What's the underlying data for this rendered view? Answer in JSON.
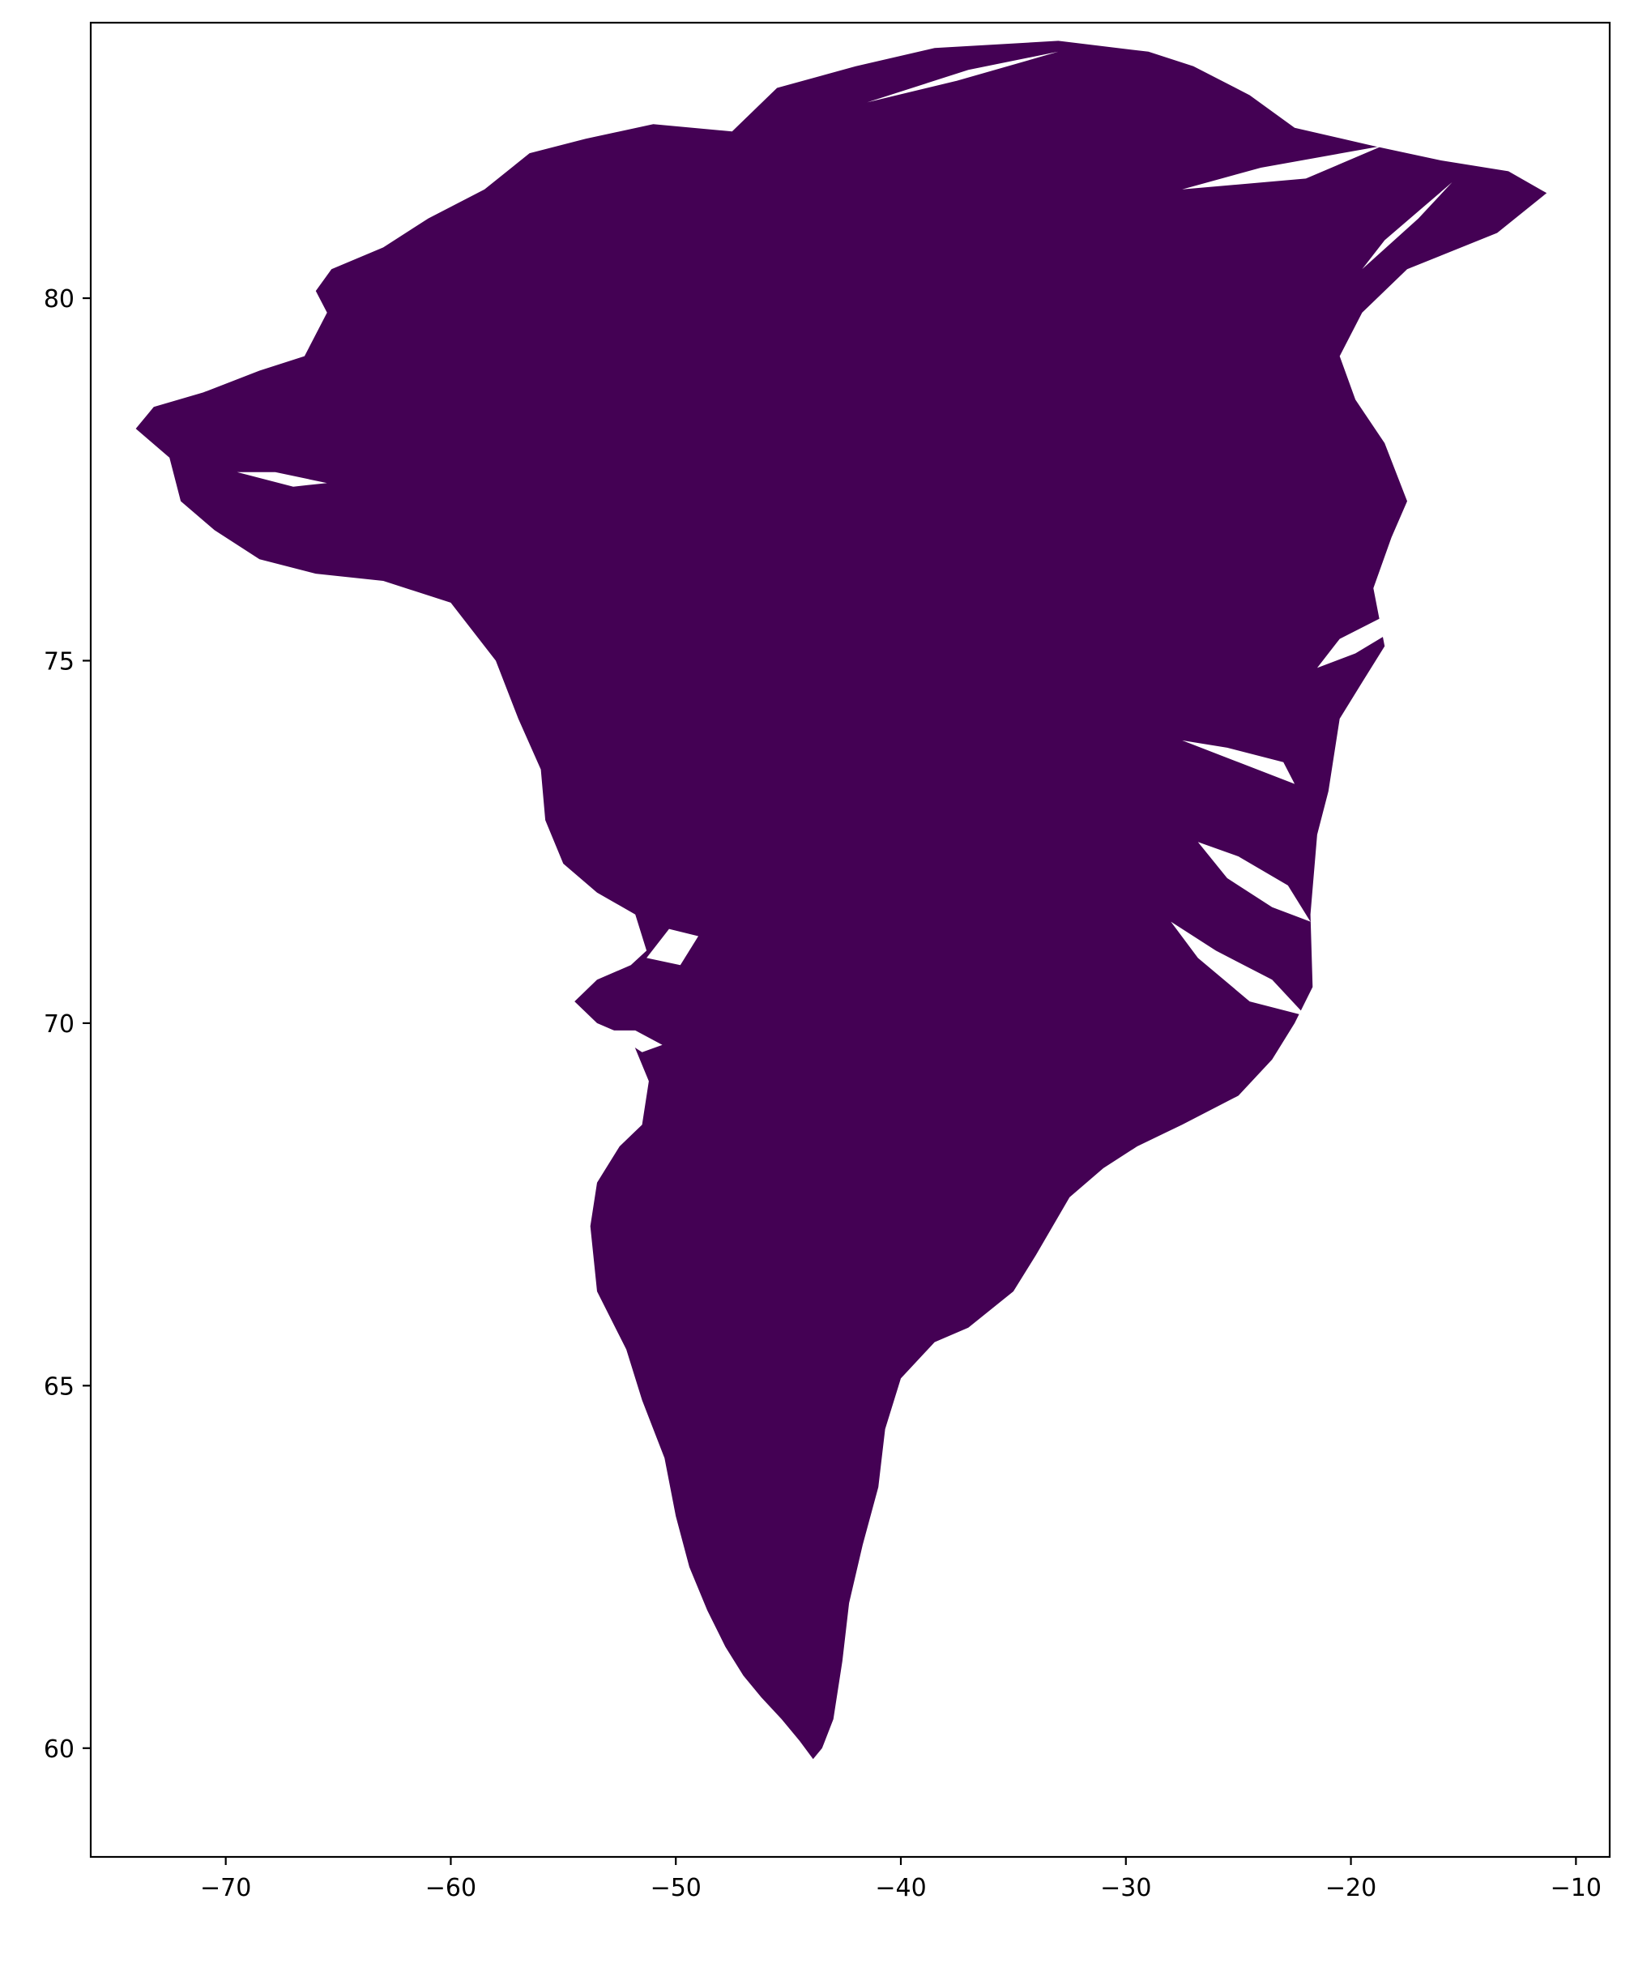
{
  "chart_data": {
    "type": "map",
    "title": "",
    "xlabel": "",
    "ylabel": "",
    "xlim": [
      -76,
      -8.5
    ],
    "ylim": [
      58.5,
      83.8
    ],
    "x_ticks": [
      -70,
      -60,
      -50,
      -40,
      -30,
      -20,
      -10
    ],
    "x_tick_labels": [
      "−70",
      "−60",
      "−50",
      "−40",
      "−30",
      "−20",
      "−10"
    ],
    "y_ticks": [
      60,
      65,
      70,
      75,
      80
    ],
    "y_tick_labels": [
      "60",
      "65",
      "70",
      "75",
      "80"
    ],
    "grid": false,
    "legend": "none",
    "fill_color": "#440154",
    "region": "Greenland",
    "outline": [
      [
        -74.0,
        78.2
      ],
      [
        -73.2,
        78.5
      ],
      [
        -71.0,
        78.7
      ],
      [
        -68.5,
        79.0
      ],
      [
        -66.5,
        79.2
      ],
      [
        -65.5,
        79.8
      ],
      [
        -66.0,
        80.1
      ],
      [
        -65.3,
        80.4
      ],
      [
        -63.0,
        80.7
      ],
      [
        -61.0,
        81.1
      ],
      [
        -58.5,
        81.5
      ],
      [
        -56.5,
        82.0
      ],
      [
        -54.0,
        82.2
      ],
      [
        -51.0,
        82.4
      ],
      [
        -47.5,
        82.3
      ],
      [
        -45.5,
        82.9
      ],
      [
        -42.0,
        83.2
      ],
      [
        -38.5,
        83.45
      ],
      [
        -33.0,
        83.55
      ],
      [
        -29.0,
        83.4
      ],
      [
        -27.0,
        83.2
      ],
      [
        -24.5,
        82.8
      ],
      [
        -22.5,
        82.35
      ],
      [
        -19.0,
        82.1
      ],
      [
        -16.0,
        81.9
      ],
      [
        -13.0,
        81.75
      ],
      [
        -11.3,
        81.45
      ],
      [
        -13.5,
        80.9
      ],
      [
        -17.5,
        80.4
      ],
      [
        -19.5,
        79.8
      ],
      [
        -20.5,
        79.2
      ],
      [
        -19.8,
        78.6
      ],
      [
        -18.5,
        78.0
      ],
      [
        -17.5,
        77.2
      ],
      [
        -18.2,
        76.7
      ],
      [
        -19.0,
        76.0
      ],
      [
        -18.5,
        75.2
      ],
      [
        -19.5,
        74.7
      ],
      [
        -20.5,
        74.2
      ],
      [
        -21.0,
        73.2
      ],
      [
        -21.5,
        72.6
      ],
      [
        -21.8,
        71.5
      ],
      [
        -21.7,
        70.5
      ],
      [
        -22.5,
        70.0
      ],
      [
        -23.5,
        69.5
      ],
      [
        -25.0,
        69.0
      ],
      [
        -27.5,
        68.6
      ],
      [
        -29.5,
        68.3
      ],
      [
        -31.0,
        68.0
      ],
      [
        -32.5,
        67.6
      ],
      [
        -34.0,
        66.8
      ],
      [
        -35.0,
        66.3
      ],
      [
        -37.0,
        65.8
      ],
      [
        -38.5,
        65.6
      ],
      [
        -40.0,
        65.1
      ],
      [
        -40.7,
        64.4
      ],
      [
        -41.0,
        63.6
      ],
      [
        -41.7,
        62.8
      ],
      [
        -42.3,
        62.0
      ],
      [
        -42.6,
        61.2
      ],
      [
        -43.0,
        60.4
      ],
      [
        -43.5,
        60.0
      ],
      [
        -43.9,
        59.85
      ],
      [
        -44.5,
        60.1
      ],
      [
        -45.3,
        60.4
      ],
      [
        -46.2,
        60.7
      ],
      [
        -47.0,
        61.0
      ],
      [
        -47.8,
        61.4
      ],
      [
        -48.6,
        61.9
      ],
      [
        -49.4,
        62.5
      ],
      [
        -50.0,
        63.2
      ],
      [
        -50.5,
        64.0
      ],
      [
        -51.5,
        64.8
      ],
      [
        -52.2,
        65.5
      ],
      [
        -53.5,
        66.3
      ],
      [
        -53.8,
        67.2
      ],
      [
        -53.5,
        67.8
      ],
      [
        -52.5,
        68.3
      ],
      [
        -51.5,
        68.6
      ],
      [
        -51.2,
        69.2
      ],
      [
        -52.0,
        69.8
      ],
      [
        -53.5,
        70.0
      ],
      [
        -54.5,
        70.3
      ],
      [
        -53.5,
        70.6
      ],
      [
        -52.0,
        70.8
      ],
      [
        -51.3,
        71.0
      ],
      [
        -51.8,
        71.5
      ],
      [
        -53.5,
        71.8
      ],
      [
        -55.0,
        72.2
      ],
      [
        -55.8,
        72.8
      ],
      [
        -56.0,
        73.5
      ],
      [
        -57.0,
        74.2
      ],
      [
        -58.0,
        75.0
      ],
      [
        -60.0,
        75.8
      ],
      [
        -63.0,
        76.1
      ],
      [
        -66.0,
        76.2
      ],
      [
        -68.5,
        76.4
      ],
      [
        -70.5,
        76.8
      ],
      [
        -72.0,
        77.2
      ],
      [
        -72.5,
        77.8
      ]
    ]
  }
}
